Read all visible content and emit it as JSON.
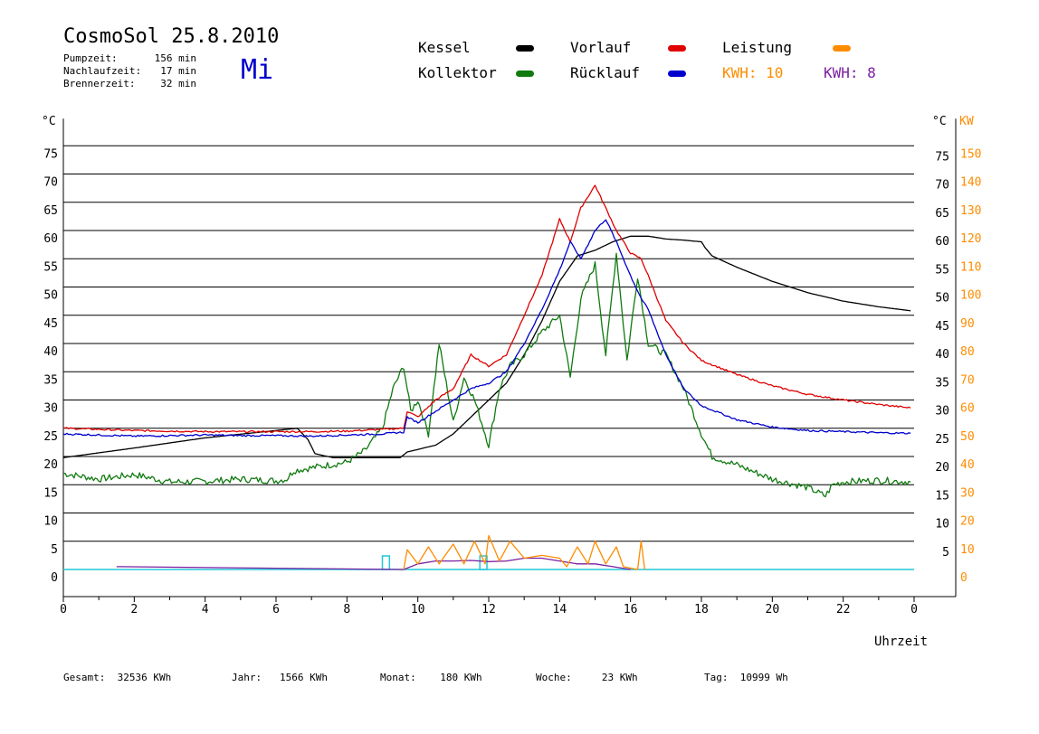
{
  "header": {
    "title": "CosmoSol 25.8.2010",
    "day": "Mi",
    "stats": [
      {
        "label": "Pumpzeit:",
        "value": "156 min"
      },
      {
        "label": "Nachlaufzeit:",
        "value": "17 min"
      },
      {
        "label": "Brennerzeit:",
        "value": "32 min"
      }
    ]
  },
  "legend": {
    "items": [
      {
        "label": "Kessel",
        "color": "#000000"
      },
      {
        "label": "Kollektor",
        "color": "#107a10"
      },
      {
        "label": "Vorlauf",
        "color": "#e00000"
      },
      {
        "label": "Rücklauf",
        "color": "#0000cc"
      },
      {
        "label": "Leistung",
        "color": "#ff8c00"
      }
    ],
    "kwh_orange": "KWH: 10",
    "kwh_purple": "KWH: 8"
  },
  "colors": {
    "orange": "#ff8c00",
    "purple": "#7a1fa0",
    "blue_day": "#0000cc",
    "cyan": "#20c8d8",
    "green": "#107a10",
    "red": "#e00000",
    "navy": "#00008b"
  },
  "footer": [
    {
      "label": "Gesamt:",
      "value": "32536 KWh"
    },
    {
      "label": "Jahr:",
      "value": "1566 KWh"
    },
    {
      "label": "Monat:",
      "value": "180 KWh"
    },
    {
      "label": "Woche:",
      "value": "23 KWh"
    },
    {
      "label": "Tag:",
      "value": "10999 Wh"
    }
  ],
  "chart_data": {
    "type": "line",
    "xlabel": "Uhrzeit",
    "ylabel_left": "°C",
    "ylabel_right_temp": "°C",
    "ylabel_right_power": "KW",
    "xlim": [
      0,
      24
    ],
    "ylim": [
      0,
      80
    ],
    "x_ticks": [
      "0",
      "2",
      "4",
      "6",
      "8",
      "10",
      "12",
      "14",
      "16",
      "18",
      "20",
      "22",
      "0"
    ],
    "y_ticks_left": [
      "0",
      "5",
      "10",
      "15",
      "20",
      "25",
      "30",
      "35",
      "40",
      "45",
      "50",
      "55",
      "60",
      "65",
      "70",
      "75"
    ],
    "y_ticks_right_temp": [
      "5",
      "10",
      "15",
      "20",
      "25",
      "30",
      "35",
      "40",
      "45",
      "50",
      "55",
      "60",
      "65",
      "70",
      "75"
    ],
    "y_ticks_right_power": [
      "0",
      "10",
      "20",
      "30",
      "40",
      "50",
      "60",
      "70",
      "80",
      "90",
      "100",
      "110",
      "120",
      "130",
      "140",
      "150"
    ],
    "grid": true,
    "series": [
      {
        "name": "Kessel",
        "color": "#000000",
        "points": [
          [
            0,
            19.8
          ],
          [
            2,
            21.5
          ],
          [
            4,
            23.3
          ],
          [
            6,
            24.6
          ],
          [
            6.6,
            25
          ],
          [
            6.9,
            23
          ],
          [
            7.1,
            20.5
          ],
          [
            7.6,
            19.8
          ],
          [
            8.5,
            19.8
          ],
          [
            9.5,
            19.8
          ],
          [
            9.7,
            20.8
          ],
          [
            10.5,
            22
          ],
          [
            11,
            24
          ],
          [
            11.5,
            27
          ],
          [
            12,
            30
          ],
          [
            12.5,
            33
          ],
          [
            13,
            38
          ],
          [
            13.5,
            44
          ],
          [
            14,
            51
          ],
          [
            14.5,
            55.5
          ],
          [
            15,
            56.5
          ],
          [
            15.5,
            58
          ],
          [
            16,
            59
          ],
          [
            16.5,
            59
          ],
          [
            17,
            58.5
          ],
          [
            17.5,
            58.3
          ],
          [
            18,
            58
          ],
          [
            18.1,
            57
          ],
          [
            18.3,
            55.5
          ],
          [
            19,
            53.5
          ],
          [
            20,
            51
          ],
          [
            21,
            49
          ],
          [
            22,
            47.5
          ],
          [
            23,
            46.5
          ],
          [
            23.9,
            45.8
          ]
        ]
      },
      {
        "name": "Vorlauf",
        "color": "#e00000",
        "points": [
          [
            0,
            25
          ],
          [
            1,
            24.8
          ],
          [
            2,
            24.6
          ],
          [
            3,
            24.5
          ],
          [
            4,
            24.4
          ],
          [
            5,
            24.4
          ],
          [
            6,
            24.4
          ],
          [
            7,
            24.4
          ],
          [
            8,
            24.5
          ],
          [
            9,
            24.8
          ],
          [
            9.6,
            25
          ],
          [
            9.7,
            28
          ],
          [
            10,
            27
          ],
          [
            10.5,
            30
          ],
          [
            11,
            32
          ],
          [
            11.5,
            38
          ],
          [
            12,
            36
          ],
          [
            12.5,
            38
          ],
          [
            13,
            45
          ],
          [
            13.5,
            52
          ],
          [
            13.8,
            58
          ],
          [
            14,
            62
          ],
          [
            14.3,
            58
          ],
          [
            14.6,
            64
          ],
          [
            15,
            68
          ],
          [
            15.3,
            64
          ],
          [
            15.6,
            60
          ],
          [
            16,
            56
          ],
          [
            16.3,
            55
          ],
          [
            16.5,
            52
          ],
          [
            17,
            44
          ],
          [
            17.5,
            40
          ],
          [
            18,
            37
          ],
          [
            19,
            34.5
          ],
          [
            20,
            32.5
          ],
          [
            21,
            31
          ],
          [
            22,
            30
          ],
          [
            23,
            29.2
          ],
          [
            23.9,
            28.6
          ]
        ]
      },
      {
        "name": "Rücklauf",
        "color": "#0000cc",
        "points": [
          [
            0,
            24
          ],
          [
            1,
            23.8
          ],
          [
            2,
            23.6
          ],
          [
            3,
            23.7
          ],
          [
            4,
            23.8
          ],
          [
            5,
            23.7
          ],
          [
            6,
            23.7
          ],
          [
            7,
            23.6
          ],
          [
            8,
            23.8
          ],
          [
            9,
            24
          ],
          [
            9.6,
            24.3
          ],
          [
            9.7,
            27
          ],
          [
            10,
            26
          ],
          [
            10.5,
            28
          ],
          [
            11,
            30
          ],
          [
            11.5,
            32
          ],
          [
            12,
            33
          ],
          [
            12.5,
            35
          ],
          [
            13,
            40
          ],
          [
            13.5,
            46
          ],
          [
            14,
            53
          ],
          [
            14.3,
            58
          ],
          [
            14.6,
            55
          ],
          [
            15,
            60
          ],
          [
            15.3,
            62
          ],
          [
            15.6,
            58
          ],
          [
            16,
            52
          ],
          [
            16.3,
            48
          ],
          [
            16.5,
            46
          ],
          [
            17,
            38
          ],
          [
            17.5,
            32
          ],
          [
            18,
            29
          ],
          [
            19,
            26.5
          ],
          [
            20,
            25.2
          ],
          [
            21,
            24.6
          ],
          [
            22,
            24.4
          ],
          [
            23,
            24.2
          ],
          [
            23.9,
            24.1
          ]
        ]
      },
      {
        "name": "Kollektor",
        "color": "#107a10",
        "points": [
          [
            0,
            17
          ],
          [
            1,
            16
          ],
          [
            2,
            16.8
          ],
          [
            3,
            15.5
          ],
          [
            4,
            15.6
          ],
          [
            5,
            16
          ],
          [
            6,
            15.7
          ],
          [
            6.3,
            16
          ],
          [
            6.5,
            17.5
          ],
          [
            7,
            18
          ],
          [
            8,
            19
          ],
          [
            8.5,
            21
          ],
          [
            9,
            25
          ],
          [
            9.3,
            32
          ],
          [
            9.6,
            36
          ],
          [
            9.8,
            28
          ],
          [
            10,
            30
          ],
          [
            10.3,
            24
          ],
          [
            10.6,
            40
          ],
          [
            11,
            26
          ],
          [
            11.3,
            34
          ],
          [
            11.6,
            30
          ],
          [
            12,
            22
          ],
          [
            12.3,
            32
          ],
          [
            12.6,
            36
          ],
          [
            13,
            38
          ],
          [
            13.5,
            42
          ],
          [
            14,
            45
          ],
          [
            14.3,
            34
          ],
          [
            14.6,
            48
          ],
          [
            15,
            54
          ],
          [
            15.3,
            38
          ],
          [
            15.6,
            56
          ],
          [
            15.9,
            37
          ],
          [
            16.2,
            52
          ],
          [
            16.5,
            40
          ],
          [
            17,
            38
          ],
          [
            17.5,
            32
          ],
          [
            18,
            24
          ],
          [
            18.3,
            20
          ],
          [
            19,
            18.5
          ],
          [
            20,
            16
          ],
          [
            21,
            14.5
          ],
          [
            21.5,
            13
          ],
          [
            21.7,
            15
          ],
          [
            22,
            15.5
          ],
          [
            23,
            15.8
          ],
          [
            23.9,
            15.5
          ]
        ]
      },
      {
        "name": "Leistung",
        "color": "#ff8c00",
        "points": [
          [
            9.6,
            0
          ],
          [
            9.7,
            3.5
          ],
          [
            10,
            1
          ],
          [
            10.3,
            4
          ],
          [
            10.6,
            1
          ],
          [
            11,
            4.5
          ],
          [
            11.3,
            1
          ],
          [
            11.6,
            5
          ],
          [
            11.9,
            1
          ],
          [
            12,
            6
          ],
          [
            12.3,
            1.5
          ],
          [
            12.6,
            5
          ],
          [
            13,
            2
          ],
          [
            13.5,
            2.5
          ],
          [
            14,
            2
          ],
          [
            14.2,
            0.5
          ],
          [
            14.5,
            4
          ],
          [
            14.8,
            1
          ],
          [
            15,
            5
          ],
          [
            15.3,
            1
          ],
          [
            15.6,
            4
          ],
          [
            15.8,
            0.5
          ],
          [
            16.2,
            0
          ],
          [
            16.3,
            5
          ],
          [
            16.4,
            0
          ]
        ]
      },
      {
        "name": "KWH 8",
        "color": "#7a1fa0",
        "points": [
          [
            1.5,
            0.5
          ],
          [
            1.6,
            0.5
          ],
          [
            9.6,
            0
          ],
          [
            10,
            1
          ],
          [
            10.5,
            1.5
          ],
          [
            11,
            1.5
          ],
          [
            11.5,
            1.6
          ],
          [
            12,
            1.4
          ],
          [
            12.5,
            1.5
          ],
          [
            13,
            2
          ],
          [
            13.5,
            2
          ],
          [
            14,
            1.5
          ],
          [
            14.5,
            1
          ],
          [
            15,
            1
          ],
          [
            15.5,
            0.5
          ],
          [
            16,
            0
          ]
        ]
      }
    ],
    "pump_pulses": [
      [
        9.0,
        9.2
      ],
      [
        11.75,
        11.95
      ]
    ]
  }
}
